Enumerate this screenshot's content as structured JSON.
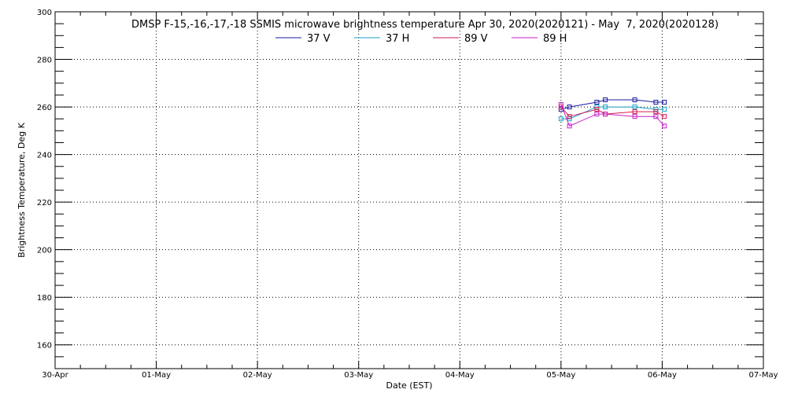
{
  "chart_data": {
    "type": "line",
    "title": "DMSP F-15,-16,-17,-18 SSMIS microwave brightness temperature Apr 30, 2020(2020121) - May  7, 2020(2020128)",
    "xlabel": "Date (EST)",
    "ylabel": "Brightness Temperature, Deg K",
    "xlim": [
      "2020-04-30",
      "2020-05-07"
    ],
    "ylim": [
      150,
      300
    ],
    "x_ticks": [
      "30-Apr",
      "01-May",
      "02-May",
      "03-May",
      "04-May",
      "05-May",
      "06-May",
      "07-May"
    ],
    "y_ticks": [
      160,
      180,
      200,
      220,
      240,
      260,
      280,
      300
    ],
    "grid": true,
    "legend_position": "top-center",
    "marker": "open-square",
    "x": [
      "2020-05-05 00:00",
      "2020-05-05 02:00",
      "2020-05-05 08:30",
      "2020-05-05 10:30",
      "2020-05-05 17:30",
      "2020-05-05 22:30",
      "2020-05-06 00:30"
    ],
    "series": [
      {
        "name": "37 V",
        "color": "#1a1aa0",
        "values": [
          259,
          260,
          262,
          263,
          263,
          262,
          262
        ]
      },
      {
        "name": "37 H",
        "color": "#1aa0c8",
        "values": [
          255,
          255,
          260,
          260,
          260,
          259,
          259
        ]
      },
      {
        "name": "89 V",
        "color": "#d21e50",
        "values": [
          260,
          256,
          259,
          257,
          258,
          258,
          256
        ]
      },
      {
        "name": "89 H",
        "color": "#c81ec8",
        "values": [
          261,
          252,
          257,
          257,
          256,
          256,
          252
        ]
      }
    ]
  }
}
